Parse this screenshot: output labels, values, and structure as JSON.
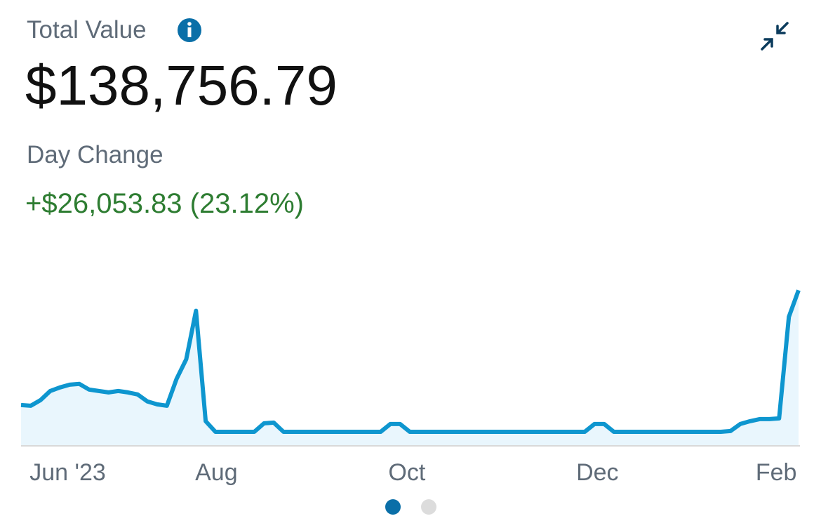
{
  "header": {
    "title": "Total Value",
    "total_value": "$138,756.79",
    "day_change_label": "Day Change",
    "day_change": "+$26,053.83 (23.12%)"
  },
  "chart_data": {
    "type": "line",
    "color": "#0e96cf",
    "values": [
      26200,
      25500,
      31000,
      40000,
      43500,
      46200,
      46900,
      41400,
      40000,
      38600,
      40000,
      38600,
      36600,
      29700,
      26900,
      25500,
      51800,
      71100,
      118700,
      10400,
      0,
      0,
      0,
      0,
      0,
      8300,
      9000,
      0,
      0,
      0,
      0,
      0,
      0,
      0,
      0,
      0,
      0,
      0,
      7600,
      7600,
      0,
      0,
      0,
      0,
      0,
      0,
      0,
      0,
      0,
      0,
      0,
      0,
      0,
      0,
      0,
      0,
      0,
      0,
      0,
      7600,
      7600,
      0,
      0,
      0,
      0,
      0,
      0,
      0,
      0,
      0,
      0,
      0,
      0,
      700,
      7600,
      10400,
      12400,
      12400,
      13100,
      112700,
      138800
    ],
    "xlim": [
      0,
      80
    ],
    "xticks": [
      {
        "value": 4.8,
        "label": "Jun '23"
      },
      {
        "value": 20.1,
        "label": "Aug"
      },
      {
        "value": 39.7,
        "label": "Oct"
      },
      {
        "value": 59.3,
        "label": "Dec"
      },
      {
        "value": 77.7,
        "label": "Feb"
      }
    ],
    "ylim": [
      -13800,
      148000
    ]
  }
}
